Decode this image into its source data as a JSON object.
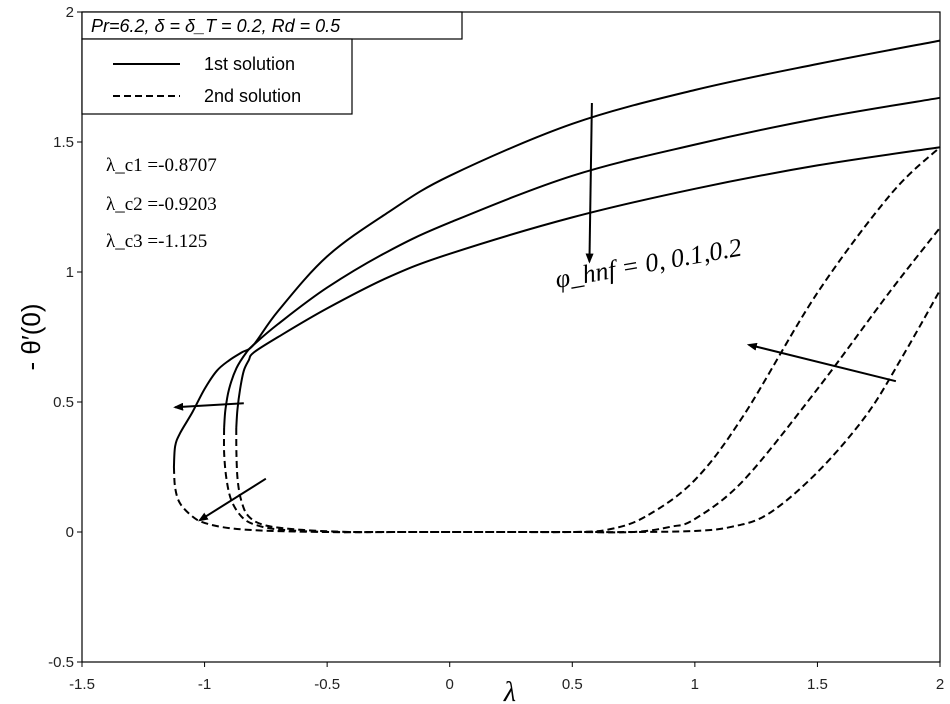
{
  "chart_data": {
    "type": "line",
    "title": "Pr=6.2, δ = δ_T =  0.2, Rd = 0.5",
    "xlabel": "λ",
    "ylabel": "- θ′(0)",
    "xlim": [
      -1.5,
      2
    ],
    "ylim": [
      -0.5,
      2
    ],
    "xticks": [
      "-1.5",
      "-1",
      "-0.5",
      "0",
      "0.5",
      "1",
      "1.5",
      "2"
    ],
    "yticks": [
      "-0.5",
      "0",
      "0.5",
      "1",
      "1.5",
      "2"
    ],
    "grid": false,
    "legend": {
      "position": "top-left",
      "entries": [
        {
          "label": "1st solution",
          "style": "solid"
        },
        {
          "label": "2nd solution",
          "style": "dashed"
        }
      ]
    },
    "annotations": {
      "critical_values": [
        {
          "label": "λ_c1 =-0.8707"
        },
        {
          "label": "λ_c2 =-0.9203"
        },
        {
          "label": "λ_c3 =-1.125"
        }
      ],
      "parameter_label": "φ_hnf = 0, 0.1,0.2"
    },
    "series": [
      {
        "style": "solid",
        "x": [
          -1.125,
          -1.12,
          -1.1,
          -1.05,
          -1.0,
          -0.95,
          -0.9,
          -0.85,
          -0.8,
          -0.7,
          -0.5,
          -0.25,
          0.0,
          0.5,
          1.0,
          1.5,
          2.0
        ],
        "y": [
          0.25,
          0.33,
          0.38,
          0.46,
          0.55,
          0.62,
          0.66,
          0.69,
          0.72,
          0.85,
          1.06,
          1.23,
          1.37,
          1.57,
          1.7,
          1.8,
          1.89
        ]
      },
      {
        "style": "solid",
        "x": [
          -0.9203,
          -0.915,
          -0.9,
          -0.87,
          -0.83,
          -0.8,
          -0.7,
          -0.5,
          -0.25,
          0.0,
          0.5,
          1.0,
          1.5,
          2.0
        ],
        "y": [
          0.4,
          0.47,
          0.55,
          0.63,
          0.69,
          0.72,
          0.8,
          0.94,
          1.08,
          1.19,
          1.37,
          1.49,
          1.59,
          1.67
        ]
      },
      {
        "style": "solid",
        "x": [
          -0.8707,
          -0.866,
          -0.855,
          -0.84,
          -0.82,
          -0.8,
          -0.7,
          -0.5,
          -0.25,
          0.0,
          0.5,
          1.0,
          1.5,
          2.0
        ],
        "y": [
          0.4,
          0.47,
          0.55,
          0.62,
          0.66,
          0.69,
          0.75,
          0.86,
          0.98,
          1.07,
          1.21,
          1.32,
          1.41,
          1.48
        ]
      },
      {
        "style": "dashed",
        "x": [
          -1.125,
          -1.12,
          -1.1,
          -1.05,
          -1.0,
          -0.9,
          -0.75,
          -0.5,
          -0.25,
          0.0,
          0.25,
          0.5,
          0.65,
          0.8,
          1.0,
          1.2,
          1.5,
          1.8,
          2.0
        ],
        "y": [
          0.25,
          0.17,
          0.11,
          0.06,
          0.035,
          0.015,
          0.005,
          0.0,
          0.0,
          0.0,
          0.0,
          0.0,
          0.01,
          0.06,
          0.2,
          0.45,
          0.92,
          1.3,
          1.48
        ]
      },
      {
        "style": "dashed",
        "x": [
          -0.9203,
          -0.92,
          -0.91,
          -0.89,
          -0.85,
          -0.8,
          -0.7,
          -0.5,
          -0.25,
          0.0,
          0.25,
          0.5,
          0.75,
          0.9,
          1.0,
          1.2,
          1.5,
          1.8,
          2.0
        ],
        "y": [
          0.4,
          0.3,
          0.2,
          0.12,
          0.06,
          0.03,
          0.01,
          0.0,
          0.0,
          0.0,
          0.0,
          0.0,
          0.0,
          0.02,
          0.05,
          0.2,
          0.55,
          0.93,
          1.17
        ]
      },
      {
        "style": "dashed",
        "x": [
          -0.8707,
          -0.87,
          -0.865,
          -0.85,
          -0.82,
          -0.75,
          -0.6,
          -0.4,
          -0.2,
          0.0,
          0.25,
          0.5,
          0.75,
          1.0,
          1.15,
          1.3,
          1.5,
          1.7,
          1.85,
          2.0
        ],
        "y": [
          0.4,
          0.3,
          0.2,
          0.12,
          0.06,
          0.025,
          0.008,
          0.0,
          0.0,
          0.0,
          0.0,
          0.0,
          0.0,
          0.004,
          0.02,
          0.07,
          0.23,
          0.45,
          0.68,
          0.93
        ]
      }
    ],
    "arrows": [
      {
        "from": [
          0.58,
          1.65
        ],
        "to": [
          0.57,
          1.04
        ]
      },
      {
        "from": [
          1.82,
          0.58
        ],
        "to": [
          1.22,
          0.72
        ]
      },
      {
        "from": [
          -0.84,
          0.495
        ],
        "to": [
          -1.12,
          0.48
        ]
      },
      {
        "from": [
          -0.75,
          0.205
        ],
        "to": [
          -1.02,
          0.045
        ]
      }
    ]
  }
}
